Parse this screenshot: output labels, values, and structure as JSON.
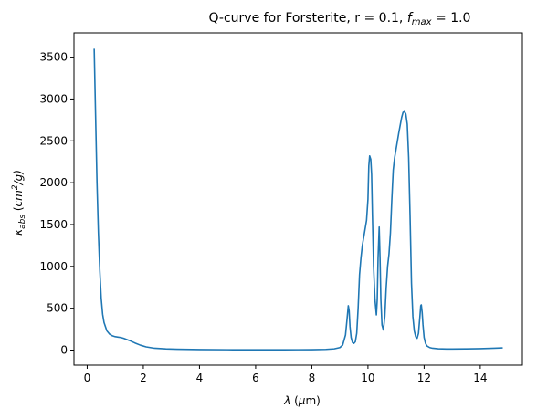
{
  "chart_data": {
    "type": "line",
    "title": "Q-curve for Forsterite, r = 0.1, ",
    "title_math": "f",
    "title_math_sub": "max",
    "title_suffix": " = 1.0",
    "xlabel_sym": "λ",
    "xlabel_rest": " (",
    "xlabel_mu": "μ",
    "xlabel_unit": "m)",
    "ylabel_sym": "κ",
    "ylabel_sub": "abs",
    "ylabel_open": " (",
    "ylabel_cm": "cm",
    "ylabel_sup": "2",
    "ylabel_close": "/g)",
    "xlim": [
      -0.47,
      15.5
    ],
    "ylim": [
      -180,
      3790
    ],
    "xticks": [
      0,
      2,
      4,
      6,
      8,
      10,
      12,
      14
    ],
    "yticks": [
      0,
      500,
      1000,
      1500,
      2000,
      2500,
      3000,
      3500
    ],
    "grid": false,
    "series_color": "#1f77b4",
    "series": [
      {
        "x": [
          0.25,
          0.3,
          0.35,
          0.4,
          0.45,
          0.5,
          0.55,
          0.6,
          0.7,
          0.8,
          0.9,
          1.0,
          1.1,
          1.2,
          1.3,
          1.5,
          1.7,
          1.9,
          2.1,
          2.4,
          2.8,
          3.2,
          4.0,
          5.0,
          6.0,
          7.0,
          7.5,
          8.0,
          8.5,
          8.8,
          9.0,
          9.1,
          9.2,
          9.25,
          9.3,
          9.33,
          9.36,
          9.4,
          9.45,
          9.5,
          9.55,
          9.6,
          9.65,
          9.7,
          9.75,
          9.8,
          9.85,
          9.9,
          9.95,
          10.0,
          10.03,
          10.06,
          10.1,
          10.13,
          10.16,
          10.2,
          10.25,
          10.3,
          10.33,
          10.36,
          10.4,
          10.43,
          10.46,
          10.5,
          10.55,
          10.6,
          10.65,
          10.7,
          10.75,
          10.8,
          10.85,
          10.9,
          10.95,
          11.0,
          11.1,
          11.2,
          11.25,
          11.3,
          11.35,
          11.4,
          11.45,
          11.5,
          11.55,
          11.6,
          11.65,
          11.7,
          11.75,
          11.8,
          11.85,
          11.88,
          11.9,
          11.93,
          11.96,
          12.0,
          12.05,
          12.1,
          12.2,
          12.3,
          12.5,
          12.8,
          13.0,
          13.5,
          14.0,
          14.5,
          14.8
        ],
        "values": [
          3600,
          2800,
          2000,
          1400,
          950,
          620,
          430,
          330,
          230,
          190,
          170,
          160,
          155,
          150,
          140,
          115,
          85,
          58,
          38,
          22,
          14,
          10,
          6,
          4,
          3,
          3,
          4,
          5,
          8,
          15,
          30,
          60,
          180,
          350,
          530,
          470,
          280,
          150,
          90,
          80,
          100,
          200,
          500,
          900,
          1100,
          1250,
          1350,
          1450,
          1550,
          1800,
          2200,
          2320,
          2280,
          2100,
          1600,
          1000,
          600,
          420,
          600,
          1100,
          1470,
          1100,
          600,
          300,
          240,
          400,
          750,
          1000,
          1150,
          1400,
          1800,
          2150,
          2300,
          2400,
          2600,
          2780,
          2840,
          2850,
          2820,
          2700,
          2300,
          1600,
          800,
          400,
          230,
          160,
          140,
          200,
          400,
          530,
          540,
          450,
          300,
          150,
          80,
          50,
          30,
          22,
          16,
          13,
          13,
          14,
          17,
          22,
          26
        ]
      }
    ]
  }
}
